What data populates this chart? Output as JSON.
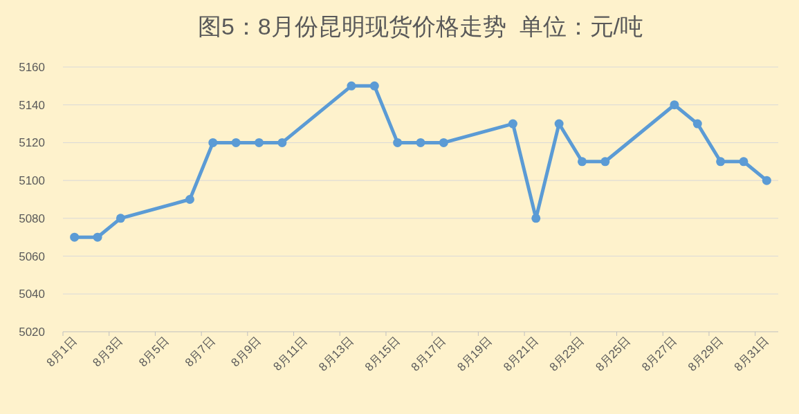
{
  "chart_data": {
    "type": "line",
    "title": "图5：8月份昆明现货价格走势  单位：元/吨",
    "categories": [
      "8月1日",
      null,
      "8月3日",
      null,
      "8月5日",
      null,
      "8月7日",
      null,
      "8月9日",
      null,
      "8月11日",
      null,
      "8月13日",
      null,
      "8月15日",
      null,
      "8月17日",
      null,
      "8月19日",
      null,
      "8月21日",
      null,
      "8月23日",
      null,
      "8月25日",
      null,
      "8月27日",
      null,
      "8月29日",
      null,
      "8月31日"
    ],
    "series": [
      {
        "color": "#5b9bd5",
        "values": [
          5070,
          5070,
          5080,
          null,
          null,
          5090,
          5120,
          5120,
          5120,
          5120,
          null,
          null,
          5150,
          5150,
          5120,
          5120,
          5120,
          null,
          null,
          5130,
          5080,
          5130,
          5110,
          5110,
          null,
          null,
          5140,
          5130,
          5110,
          5110,
          5100
        ]
      }
    ],
    "ylim": [
      5020,
      5160
    ],
    "yticks": [
      5020,
      5040,
      5060,
      5080,
      5100,
      5120,
      5140,
      5160
    ],
    "grid": "y",
    "marker": "circle",
    "line_style": "solid"
  }
}
